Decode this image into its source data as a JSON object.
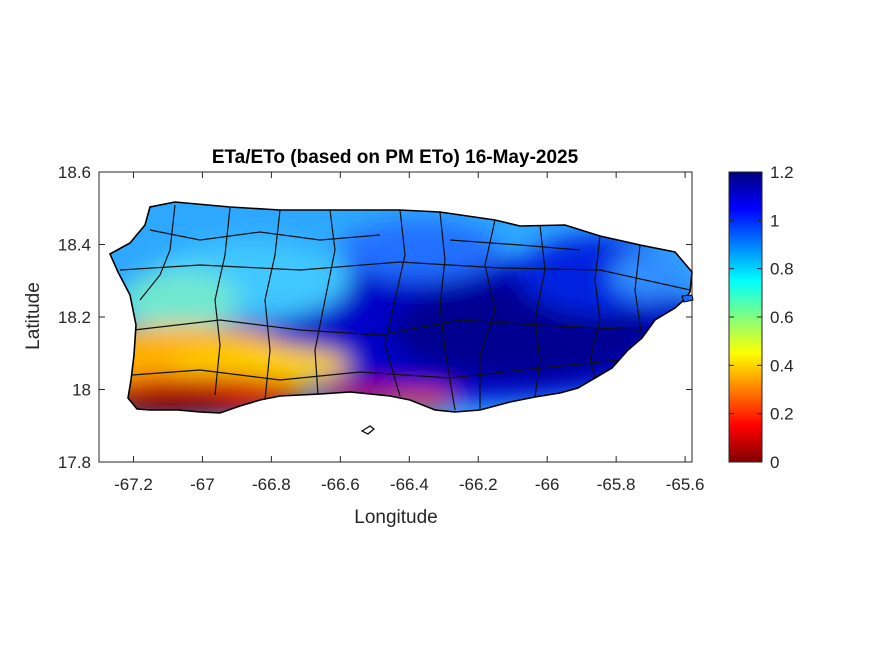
{
  "title": "ETa/ETo (based on PM ETo) 16-May-2025",
  "axes": {
    "xlabel": "Longitude",
    "ylabel": "Latitude",
    "xlim": [
      -67.3,
      -65.58
    ],
    "ylim": [
      17.8,
      18.6
    ],
    "xticks": [
      -67.2,
      -67,
      -66.8,
      -66.6,
      -66.4,
      -66.2,
      -66,
      -65.8,
      -65.6
    ],
    "xtick_labels": [
      "-67.2",
      "-67",
      "-66.8",
      "-66.6",
      "-66.4",
      "-66.2",
      "-66",
      "-65.8",
      "-65.6"
    ],
    "yticks": [
      17.8,
      18,
      18.2,
      18.4,
      18.6
    ],
    "ytick_labels": [
      "17.8",
      "18",
      "18.2",
      "18.4",
      "18.6"
    ]
  },
  "colorbar": {
    "colormap": "jet",
    "range": [
      0,
      1.2
    ],
    "ticks": [
      0,
      0.2,
      0.4,
      0.6,
      0.8,
      1,
      1.2
    ],
    "tick_labels": [
      "0",
      "0.2",
      "0.4",
      "0.6",
      "0.8",
      "1",
      "1.2"
    ],
    "stops": [
      "#800000",
      "#ff0000",
      "#ffff00",
      "#00ffff",
      "#0000ff",
      "#000080"
    ]
  },
  "map_regions": {
    "southwest_coast": "very low ratio (0–0.2)",
    "south_central": "low ratio (0.2–0.5)",
    "west_north": "medium ratio (0.6–0.9)",
    "central_east": "high ratio (1.0–1.2)"
  },
  "colors": {
    "land_outline": "#000000",
    "axes_box": "#262626"
  }
}
